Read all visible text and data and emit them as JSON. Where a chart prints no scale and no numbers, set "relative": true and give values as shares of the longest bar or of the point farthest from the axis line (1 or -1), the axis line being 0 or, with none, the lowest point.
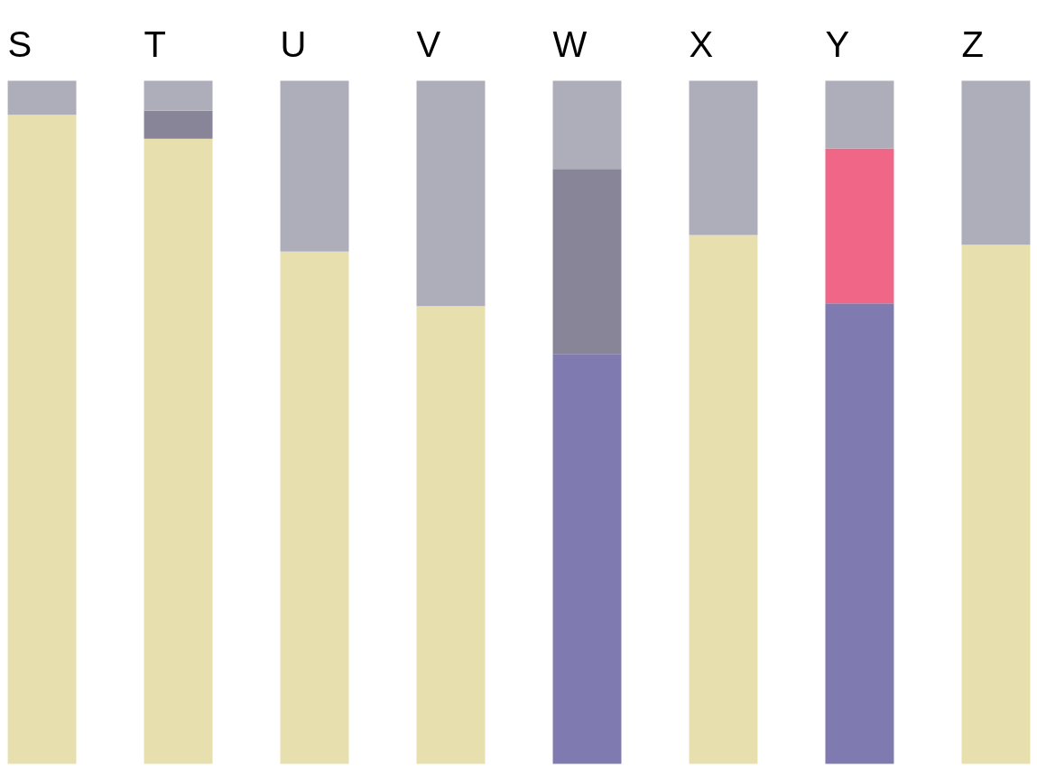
{
  "chart_data": {
    "type": "bar",
    "stacked": true,
    "relative": true,
    "categories": [
      "S",
      "T",
      "U",
      "V",
      "W",
      "X",
      "Y",
      "Z"
    ],
    "series": [
      {
        "color": "#e8dfae",
        "values": [
          0.95,
          0.915,
          0.75,
          0.67,
          null,
          0.774,
          null,
          0.76
        ]
      },
      {
        "color": "#7f7bb0",
        "values": [
          null,
          null,
          null,
          null,
          0.6,
          null,
          0.674,
          null
        ]
      },
      {
        "color": "#878597",
        "values": [
          null,
          0.041,
          null,
          null,
          0.271,
          null,
          null,
          null
        ]
      },
      {
        "color": "#f06687",
        "values": [
          null,
          null,
          null,
          null,
          null,
          null,
          0.227,
          null
        ]
      },
      {
        "color": "#aeadba",
        "values": [
          0.05,
          0.044,
          0.25,
          0.33,
          0.129,
          0.226,
          0.099,
          0.24
        ]
      }
    ]
  }
}
